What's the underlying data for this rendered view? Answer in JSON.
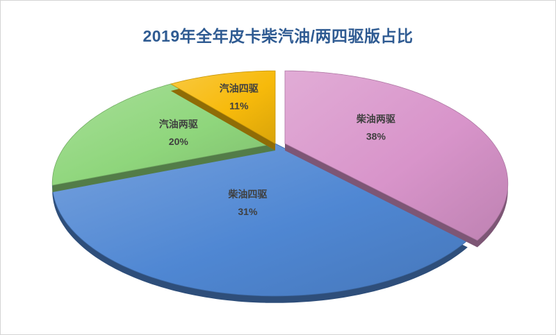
{
  "chart_data": {
    "type": "pie",
    "title": "2019年全年皮卡柴汽油/两四驱版占比",
    "categories": [
      "柴油两驱",
      "柴油四驱",
      "汽油两驱",
      "汽油四驱"
    ],
    "values": [
      38,
      31,
      20,
      11
    ],
    "unit": "%",
    "colors": [
      "#d894ca",
      "#4f87d3",
      "#8fd67c",
      "#f7ba0b"
    ]
  }
}
